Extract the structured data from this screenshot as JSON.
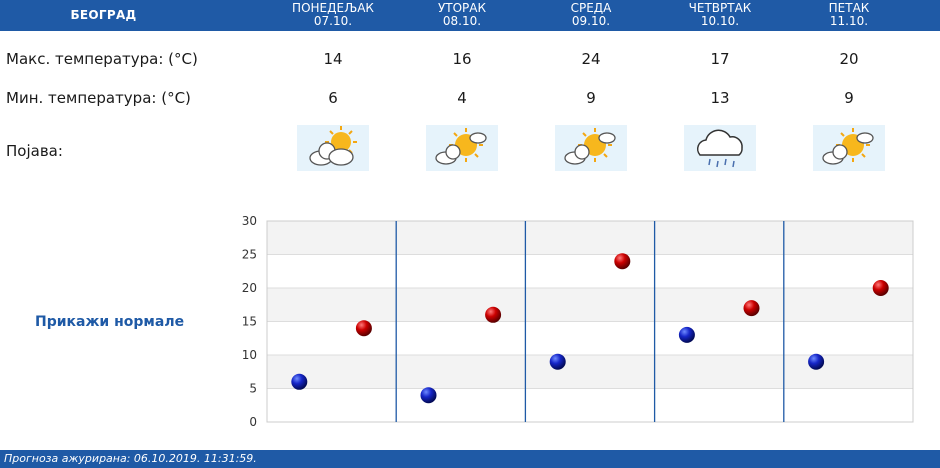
{
  "header": {
    "city": "БЕОГРАД",
    "days": [
      {
        "name": "ПОНЕДЕЉАК",
        "date": "07.10."
      },
      {
        "name": "УТОРАК",
        "date": "08.10."
      },
      {
        "name": "СРЕДА",
        "date": "09.10."
      },
      {
        "name": "ЧЕТВРТАК",
        "date": "10.10."
      },
      {
        "name": "ПЕТАК",
        "date": "11.10."
      }
    ]
  },
  "rows": {
    "max_label": "Макс. температура: (°C)",
    "min_label": "Мин. температура: (°C)",
    "phenomenon_label": "Појава:",
    "max": [
      "14",
      "16",
      "24",
      "17",
      "20"
    ],
    "min": [
      "6",
      "4",
      "9",
      "13",
      "9"
    ],
    "phenomena_icons": [
      "partly-cloudy-icon",
      "partly-cloudy-icon",
      "partly-cloudy-icon",
      "rain-cloud-icon",
      "partly-cloudy-icon"
    ]
  },
  "normals_link": "Прикажи нормале",
  "chart_data": {
    "type": "scatter",
    "categories": [
      "ПОНЕДЕЉАК",
      "УТОРАК",
      "СРЕДА",
      "ЧЕТВРТАК",
      "ПЕТАК"
    ],
    "series": [
      {
        "values": [
          6,
          4,
          9,
          13,
          9
        ],
        "color": "#0a1fb0"
      },
      {
        "values": [
          14,
          16,
          24,
          17,
          20
        ],
        "color": "#c90000"
      }
    ],
    "ylim": [
      0,
      30
    ],
    "yticks": [
      "0",
      "5",
      "10",
      "15",
      "20",
      "25",
      "30"
    ],
    "grid": true,
    "colors": {
      "band_alt": "#f3f3f3",
      "divider": "#1f5aa6",
      "grid": "#dddddd"
    }
  },
  "footer": {
    "text": "Прогноза ажурирана:  06.10.2019. 11:31:59."
  }
}
